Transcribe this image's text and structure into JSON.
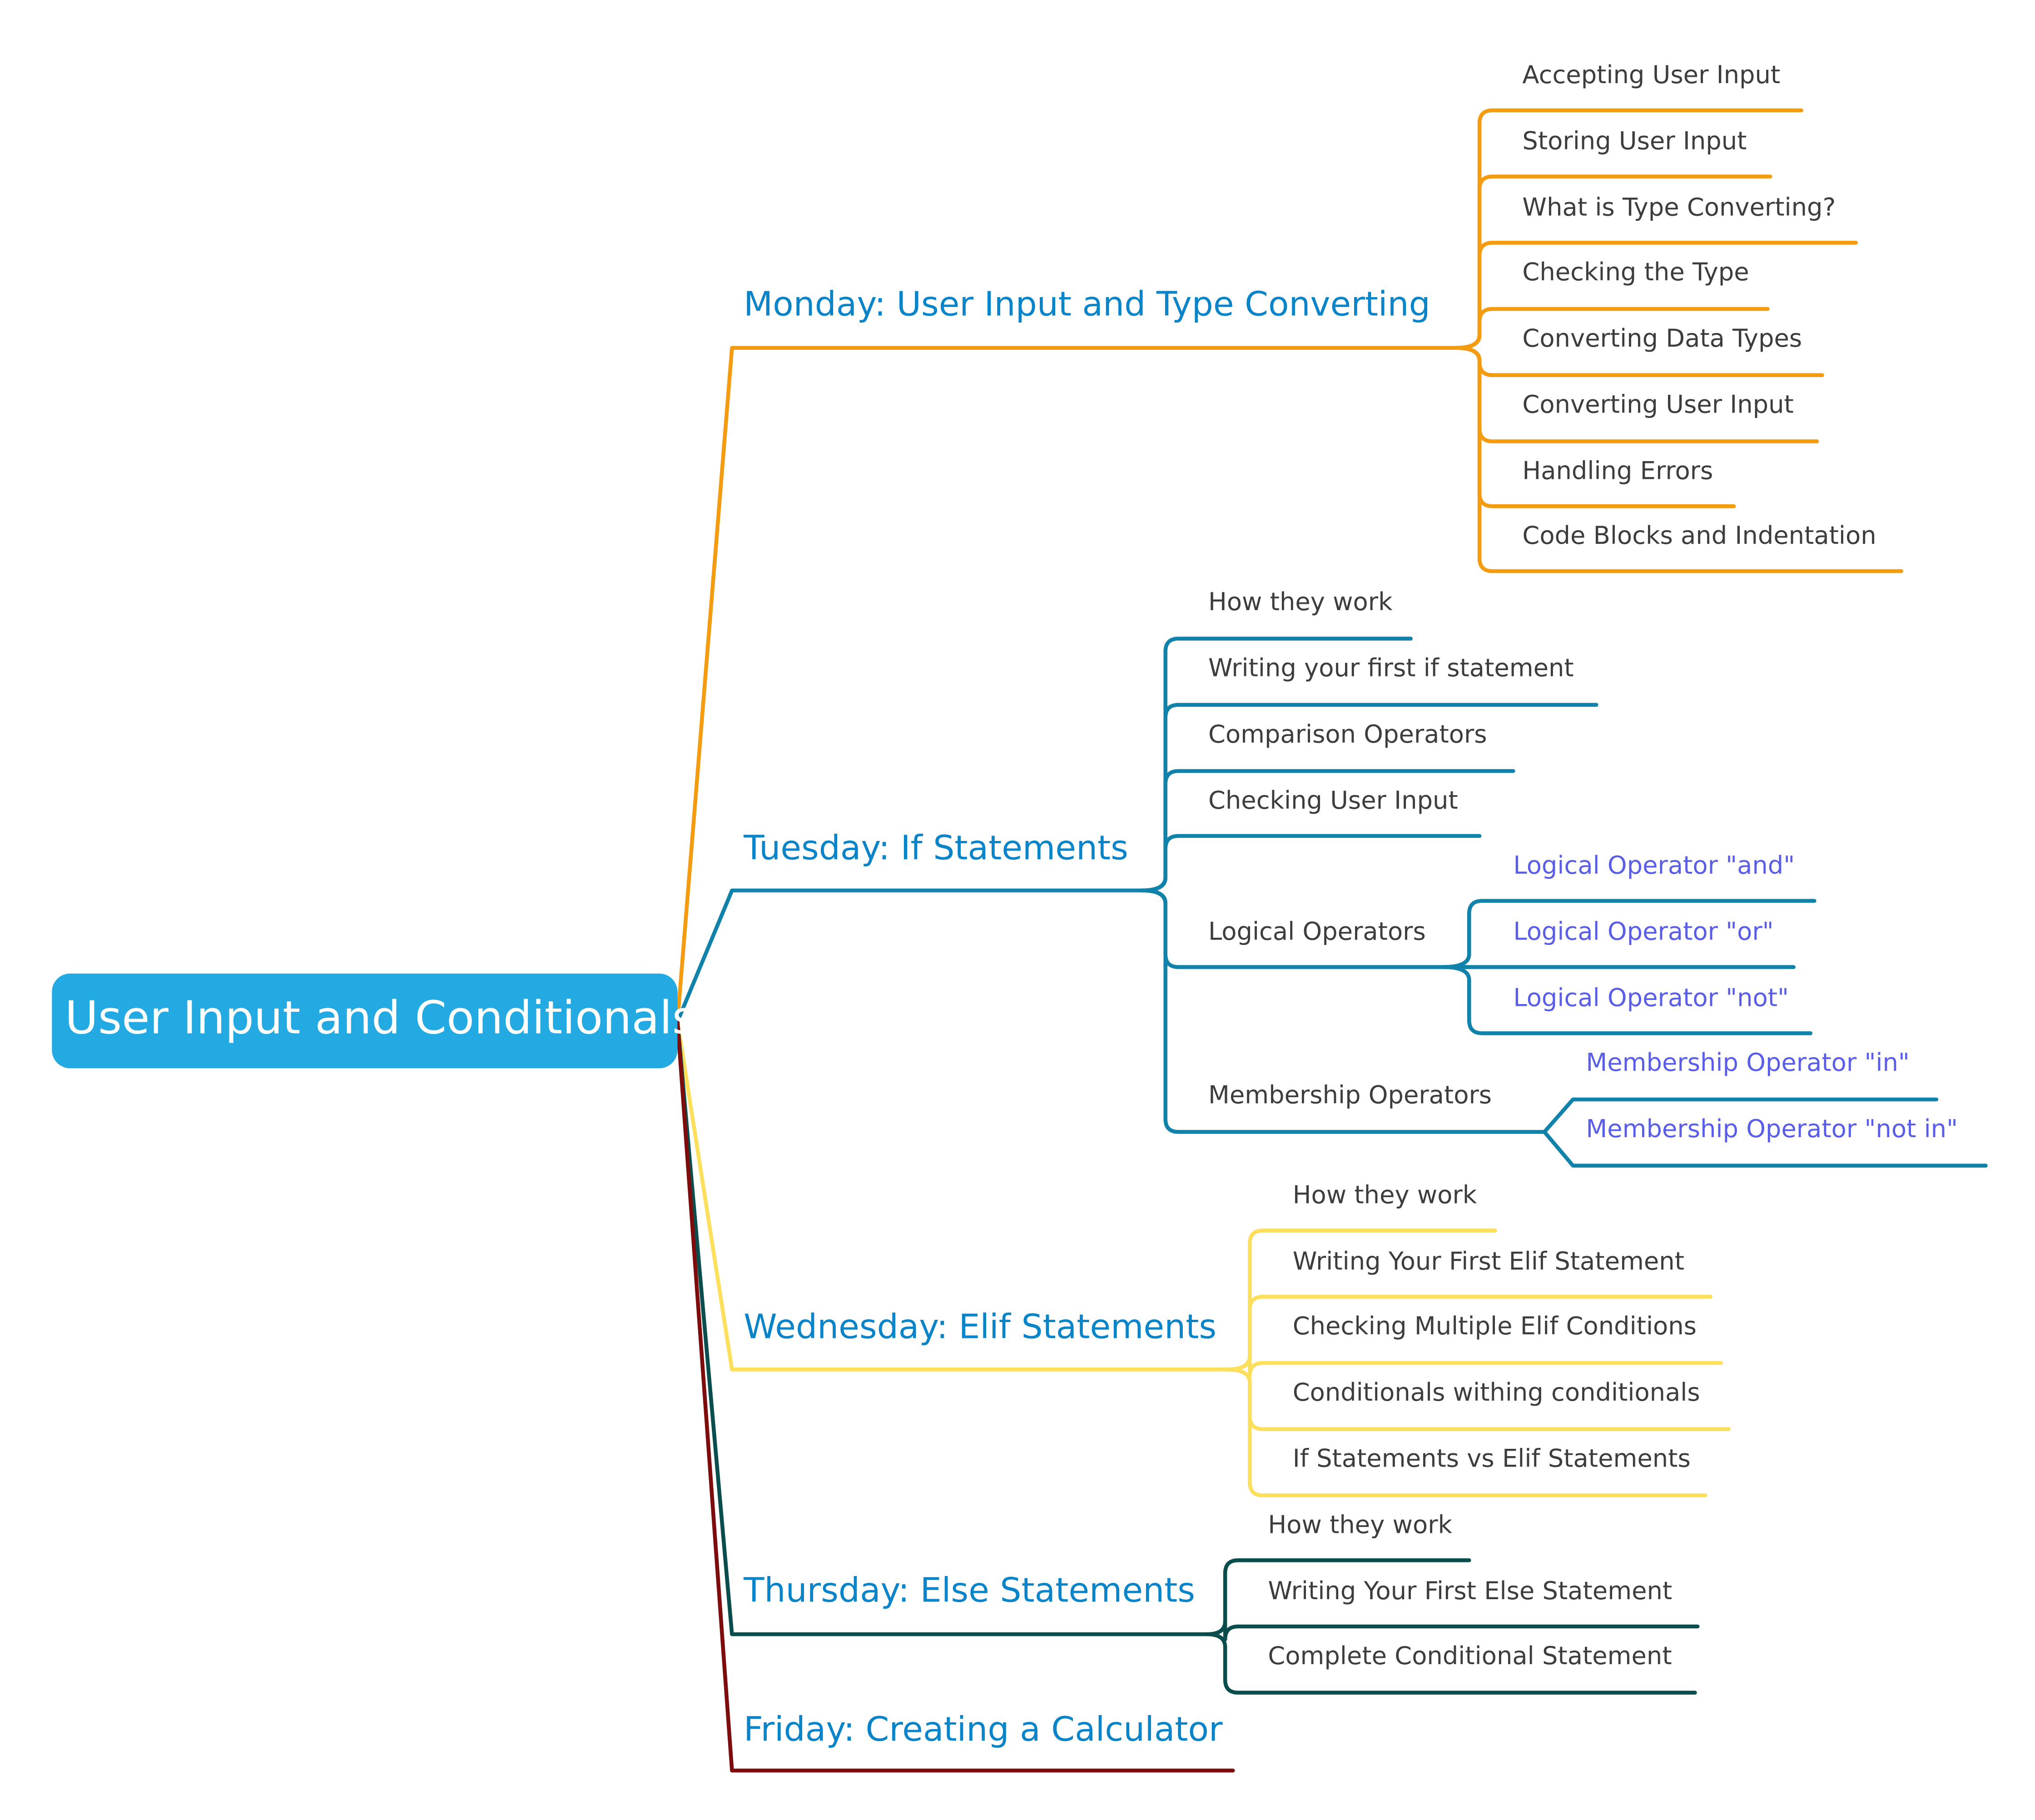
{
  "root": {
    "title": "User Input and Conditionals"
  },
  "colors": {
    "root_fill": "#24aae2",
    "monday": "#f39c12",
    "tuesday": "#1182aa",
    "wednesday": "#fcdf5d",
    "thursday": "#0b4d4d",
    "friday": "#7d0d0d",
    "day_text": "#0a84c9",
    "leaf_text": "#3d3d3d",
    "sub_text": "#5a5ee6"
  },
  "branches": [
    {
      "label": "Monday: User Input and Type Converting",
      "topics": [
        {
          "label": "Accepting User Input"
        },
        {
          "label": "Storing User Input"
        },
        {
          "label": "What is Type Converting?"
        },
        {
          "label": "Checking the Type"
        },
        {
          "label": "Converting Data Types"
        },
        {
          "label": "Converting User Input"
        },
        {
          "label": "Handling Errors"
        },
        {
          "label": "Code Blocks and Indentation"
        }
      ]
    },
    {
      "label": "Tuesday: If Statements",
      "topics": [
        {
          "label": "How they work"
        },
        {
          "label": "Writing your first if statement"
        },
        {
          "label": "Comparison Operators"
        },
        {
          "label": "Checking User Input"
        },
        {
          "label": "Logical Operators",
          "subtopics": [
            {
              "label": "Logical Operator \"and\""
            },
            {
              "label": "Logical Operator \"or\""
            },
            {
              "label": "Logical Operator \"not\""
            }
          ]
        },
        {
          "label": "Membership Operators",
          "subtopics": [
            {
              "label": "Membership Operator \"in\""
            },
            {
              "label": "Membership Operator \"not in\""
            }
          ]
        }
      ]
    },
    {
      "label": "Wednesday: Elif Statements",
      "topics": [
        {
          "label": "How they work"
        },
        {
          "label": "Writing Your First Elif Statement"
        },
        {
          "label": "Checking Multiple Elif Conditions"
        },
        {
          "label": "Conditionals withing conditionals"
        },
        {
          "label": "If Statements vs Elif Statements"
        }
      ]
    },
    {
      "label": "Thursday: Else Statements",
      "topics": [
        {
          "label": "How they work"
        },
        {
          "label": "Writing Your First Else Statement"
        },
        {
          "label": "Complete Conditional Statement"
        }
      ]
    },
    {
      "label": "Friday: Creating a Calculator",
      "topics": []
    }
  ]
}
